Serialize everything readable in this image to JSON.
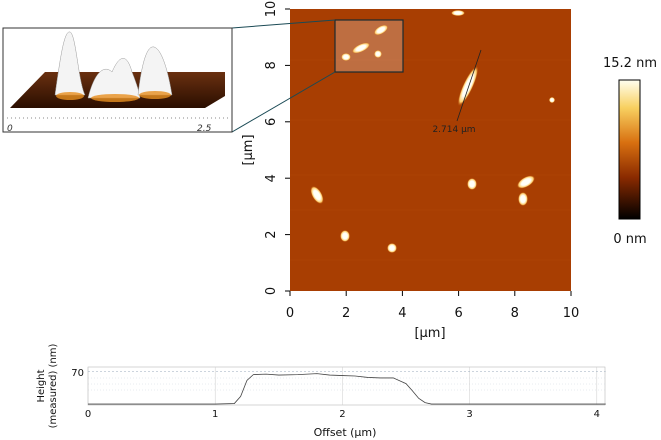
{
  "chart_data": [
    {
      "type": "heatmap",
      "xlabel": "[μm]",
      "ylabel": "[μm]",
      "xlim": [
        0,
        10
      ],
      "ylim": [
        0,
        10
      ],
      "xticks": [
        0,
        2,
        4,
        6,
        8,
        10
      ],
      "yticks": [
        0,
        2,
        4,
        6,
        8,
        10
      ],
      "clim": [
        0,
        15.2
      ],
      "cticks": [
        {
          "value": 15.2,
          "label": "15.2 nm"
        },
        {
          "value": 0,
          "label": "0 nm"
        }
      ],
      "annotation": "2.714 μm",
      "inset_xlim": [
        0,
        3
      ],
      "inset_xticks": [
        0,
        2.5
      ]
    },
    {
      "type": "line",
      "xlabel": "Offset (μm)",
      "ylabel": [
        "Height",
        "(measured) (nm)"
      ],
      "xlim": [
        0,
        4.07
      ],
      "ylim": [
        0,
        80
      ],
      "xticks": [
        0,
        1,
        2,
        3,
        4
      ],
      "yticks": [
        70
      ],
      "color": "#444",
      "x": [
        0,
        0.5,
        1.0,
        1.15,
        1.2,
        1.25,
        1.3,
        1.4,
        1.5,
        1.65,
        1.8,
        1.9,
        2.0,
        2.1,
        2.2,
        2.3,
        2.4,
        2.5,
        2.55,
        2.6,
        2.65,
        2.7,
        3.0,
        3.5,
        4.07
      ],
      "values": [
        2,
        2,
        2,
        3,
        18,
        52,
        64,
        65,
        63,
        64,
        66,
        63,
        62,
        61,
        58,
        57,
        57,
        45,
        30,
        14,
        5,
        2,
        2,
        2,
        2
      ]
    }
  ]
}
